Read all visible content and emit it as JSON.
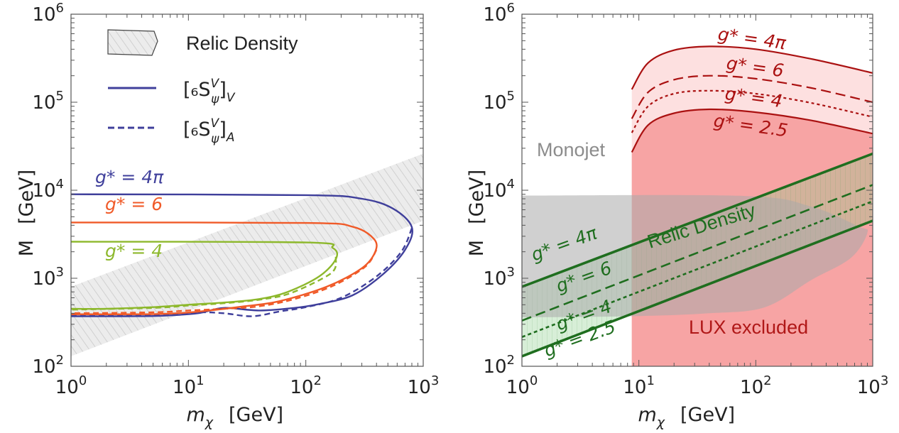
{
  "chart_data": [
    {
      "type": "line",
      "xscale": "log",
      "yscale": "log",
      "xlim": [
        1,
        1000
      ],
      "ylim": [
        100,
        1000000
      ],
      "xlabel_var": "m",
      "xlabel_sub": "χ",
      "xlabel_unit": "[GeV]",
      "ylabel": "M",
      "ylabel_unit": "[GeV]",
      "x_ticks": [
        {
          "base": "10",
          "exp": "0"
        },
        {
          "base": "10",
          "exp": "1"
        },
        {
          "base": "10",
          "exp": "2"
        },
        {
          "base": "10",
          "exp": "3"
        }
      ],
      "y_ticks": [
        {
          "base": "10",
          "exp": "2"
        },
        {
          "base": "10",
          "exp": "3"
        },
        {
          "base": "10",
          "exp": "4"
        },
        {
          "base": "10",
          "exp": "5"
        },
        {
          "base": "10",
          "exp": "6"
        }
      ],
      "legend": {
        "placement": "top-left",
        "items": [
          {
            "label": "Relic Density",
            "style": "hatched-band"
          },
          {
            "label_main": "[₆S",
            "label_sup": "V",
            "label_sub": "ψ",
            "label_tail": "]",
            "label_sub2": "V",
            "style": "solid"
          },
          {
            "label_main": "[₆S",
            "label_sup": "V",
            "label_sub": "ψ",
            "label_tail": "]",
            "label_sub2": "A",
            "style": "dashed"
          }
        ]
      },
      "relic_band": {
        "lower": [
          [
            1,
            130
          ],
          [
            1000,
            4500
          ]
        ],
        "upper": [
          [
            1,
            800
          ],
          [
            1000,
            26000
          ]
        ]
      },
      "series": [
        {
          "label": "g* = 4π",
          "color": "#3f3f9b",
          "style": "solid",
          "points": [
            [
              1,
              9000
            ],
            [
              100,
              8800
            ],
            [
              300,
              8000
            ],
            [
              550,
              6200
            ],
            [
              800,
              3800
            ],
            [
              700,
              2100
            ],
            [
              450,
              1100
            ],
            [
              250,
              640
            ],
            [
              130,
              510
            ],
            [
              80,
              460
            ],
            [
              40,
              430
            ],
            [
              20,
              460
            ],
            [
              12,
              400
            ],
            [
              6,
              375
            ],
            [
              3,
              370
            ],
            [
              1,
              370
            ]
          ]
        },
        {
          "label": "g* = 4π",
          "color": "#3f3f9b",
          "style": "dashed",
          "points": [
            [
              800,
              3700
            ],
            [
              650,
              2000
            ],
            [
              400,
              1050
            ],
            [
              200,
              600
            ],
            [
              100,
              470
            ],
            [
              60,
              420
            ],
            [
              35,
              370
            ],
            [
              20,
              400
            ],
            [
              12,
              410
            ],
            [
              6,
              385
            ],
            [
              3,
              385
            ],
            [
              1,
              385
            ]
          ]
        },
        {
          "label": "g* = 6",
          "color": "#f05a28",
          "style": "solid",
          "points": [
            [
              1,
              4300
            ],
            [
              100,
              4250
            ],
            [
              250,
              3850
            ],
            [
              380,
              2800
            ],
            [
              390,
              2000
            ],
            [
              300,
              1300
            ],
            [
              150,
              800
            ],
            [
              60,
              550
            ],
            [
              30,
              480
            ],
            [
              15,
              430
            ],
            [
              8,
              400
            ],
            [
              4,
              390
            ],
            [
              1,
              390
            ]
          ]
        },
        {
          "label": "g* = 6",
          "color": "#f05a28",
          "style": "dashed",
          "points": [
            [
              400,
              2100
            ],
            [
              320,
              1350
            ],
            [
              170,
              820
            ],
            [
              80,
              580
            ],
            [
              40,
              480
            ],
            [
              20,
              450
            ],
            [
              10,
              430
            ],
            [
              5,
              410
            ],
            [
              1,
              400
            ]
          ]
        },
        {
          "label": "g* = 4",
          "color": "#8db82c",
          "style": "solid",
          "points": [
            [
              1,
              2600
            ],
            [
              100,
              2550
            ],
            [
              170,
              2200
            ],
            [
              180,
              1650
            ],
            [
              130,
              1050
            ],
            [
              70,
              700
            ],
            [
              40,
              580
            ],
            [
              20,
              530
            ],
            [
              10,
              500
            ],
            [
              5,
              470
            ],
            [
              2,
              450
            ],
            [
              1,
              450
            ]
          ]
        },
        {
          "label": "g* = 4",
          "color": "#8db82c",
          "style": "dashed",
          "points": [
            [
              180,
              1750
            ],
            [
              175,
              1250
            ],
            [
              130,
              950
            ],
            [
              70,
              660
            ],
            [
              40,
              570
            ],
            [
              20,
              520
            ],
            [
              10,
              490
            ],
            [
              5,
              460
            ],
            [
              1,
              440
            ]
          ]
        }
      ],
      "annotations": [
        {
          "label": "g* = 4π",
          "color": "#3f3f9b"
        },
        {
          "label": "g* = 6",
          "color": "#f05a28"
        },
        {
          "label": "g* = 4",
          "color": "#8db82c"
        }
      ]
    },
    {
      "type": "area",
      "xscale": "log",
      "yscale": "log",
      "xlim": [
        1,
        1000
      ],
      "ylim": [
        100,
        1000000
      ],
      "xlabel_var": "m",
      "xlabel_sub": "χ",
      "xlabel_unit": "[GeV]",
      "ylabel": "M",
      "ylabel_unit": "[GeV]",
      "x_ticks": [
        {
          "base": "10",
          "exp": "0"
        },
        {
          "base": "10",
          "exp": "1"
        },
        {
          "base": "10",
          "exp": "2"
        },
        {
          "base": "10",
          "exp": "3"
        }
      ],
      "y_ticks": [
        {
          "base": "10",
          "exp": "2"
        },
        {
          "base": "10",
          "exp": "3"
        },
        {
          "base": "10",
          "exp": "4"
        },
        {
          "base": "10",
          "exp": "5"
        },
        {
          "base": "10",
          "exp": "6"
        }
      ],
      "regions": [
        {
          "label": "Monojet",
          "color": "#a9a9a9",
          "points": [
            [
              1,
              8700
            ],
            [
              80,
              8600
            ],
            [
              300,
              6500
            ],
            [
              750,
              3900
            ],
            [
              900,
              3300
            ],
            [
              650,
              1700
            ],
            [
              300,
              960
            ],
            [
              120,
              470
            ],
            [
              40,
              400
            ],
            [
              8.7,
              370
            ],
            [
              1,
              360
            ]
          ]
        },
        {
          "label": "LUX excluded",
          "color": "#f7a4a4",
          "x_start": 8.7
        }
      ],
      "relic_band": {
        "label": "Relic Density",
        "lower": [
          [
            1,
            130
          ],
          [
            1000,
            4500
          ]
        ],
        "upper": [
          [
            1,
            800
          ],
          [
            1000,
            26000
          ]
        ]
      },
      "relic_lines": [
        {
          "label": "g* = 4π",
          "style": "solid",
          "points": [
            [
              1,
              800
            ],
            [
              1000,
              26000
            ]
          ]
        },
        {
          "label": "g* = 6",
          "style": "dashed",
          "points": [
            [
              1,
              330
            ],
            [
              1000,
              11500
            ]
          ]
        },
        {
          "label": "g* = 4",
          "style": "dotted",
          "points": [
            [
              1,
              215
            ],
            [
              1000,
              7500
            ]
          ]
        },
        {
          "label": "g* = 2.5",
          "style": "solid",
          "points": [
            [
              1,
              130
            ],
            [
              1000,
              4500
            ]
          ]
        }
      ],
      "lux_curves": [
        {
          "label": "g* = 4π",
          "style": "solid",
          "points": [
            [
              8.7,
              140000
            ],
            [
              12,
              280000
            ],
            [
              20,
              390000
            ],
            [
              40,
              430000
            ],
            [
              100,
              400000
            ],
            [
              300,
              310000
            ],
            [
              1000,
              215000
            ]
          ]
        },
        {
          "label": "g* = 6",
          "style": "dashed",
          "points": [
            [
              8.7,
              65000
            ],
            [
              12,
              130000
            ],
            [
              20,
              180000
            ],
            [
              40,
              200000
            ],
            [
              100,
              185000
            ],
            [
              300,
              145000
            ],
            [
              1000,
              100000
            ]
          ]
        },
        {
          "label": "g* = 4",
          "style": "dotted",
          "points": [
            [
              8.7,
              45000
            ],
            [
              12,
              90000
            ],
            [
              20,
              125000
            ],
            [
              40,
              135000
            ],
            [
              100,
              125000
            ],
            [
              300,
              98000
            ],
            [
              1000,
              68000
            ]
          ]
        },
        {
          "label": "g* = 2.5",
          "style": "solid",
          "points": [
            [
              8.7,
              27000
            ],
            [
              12,
              55000
            ],
            [
              20,
              75000
            ],
            [
              40,
              83000
            ],
            [
              100,
              77000
            ],
            [
              300,
              62000
            ],
            [
              1000,
              44000
            ]
          ]
        }
      ]
    }
  ],
  "colors": {
    "lux_line": "#aa1111",
    "lux_fill_strong": "#f7a4a4",
    "lux_fill_light": "#fde0e0",
    "relic_green": "#1f6e1f",
    "relic_fill": "#8cce8c",
    "monojet": "#a9a9a9",
    "hatch_fill": "#ebebeb",
    "hatch_line": "#cfcfcf"
  }
}
